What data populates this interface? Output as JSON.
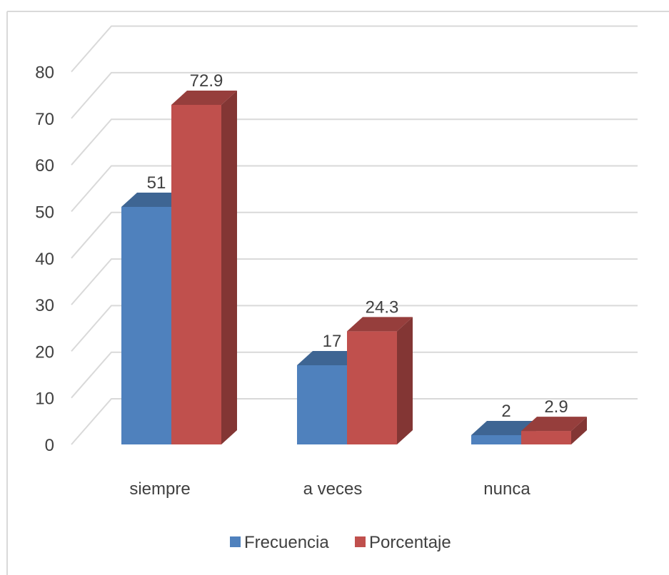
{
  "chart_data": {
    "type": "bar",
    "categories": [
      "siempre",
      "a veces",
      "nunca"
    ],
    "series": [
      {
        "name": "Frecuencia",
        "values": [
          51,
          17,
          2
        ],
        "labels": [
          "51",
          "17",
          "2"
        ],
        "color": "#4F81BD"
      },
      {
        "name": "Porcentaje",
        "values": [
          72.9,
          24.3,
          2.9
        ],
        "labels": [
          "72.9",
          "24.3",
          "2.9"
        ],
        "color": "#C0504D"
      }
    ],
    "y_ticks": [
      "0",
      "10",
      "20",
      "30",
      "40",
      "50",
      "60",
      "70",
      "80"
    ],
    "ylim": [
      0,
      80
    ],
    "grid": true,
    "legend_position": "bottom",
    "style": "3d-clustered-column"
  }
}
